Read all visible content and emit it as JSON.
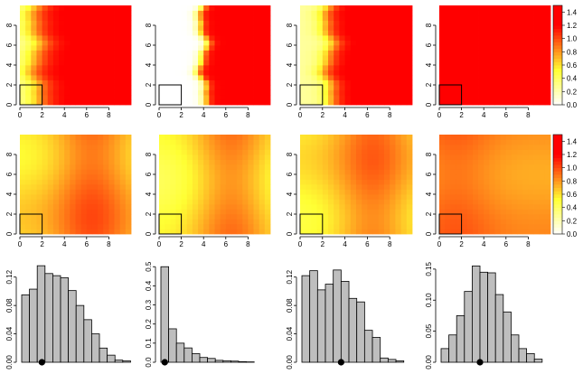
{
  "chart_data": [
    {
      "type": "heatmap",
      "row": 0,
      "col": 0,
      "x_ticks": [
        "0",
        "2",
        "4",
        "6",
        "8"
      ],
      "y_ticks": [
        "0",
        "2",
        "4",
        "6",
        "8"
      ],
      "xlim": [
        0,
        10
      ],
      "ylim": [
        0,
        10
      ],
      "field": {
        "mode": "boundary",
        "boundary_x": 1.4,
        "width": 0.7,
        "low": 0.25,
        "high": 1.22
      },
      "box": {
        "x": [
          0,
          2
        ],
        "y": [
          0,
          2
        ]
      }
    },
    {
      "type": "heatmap",
      "row": 0,
      "col": 1,
      "x_ticks": [
        "0",
        "2",
        "4",
        "6",
        "8"
      ],
      "y_ticks": [
        "0",
        "2",
        "4",
        "6",
        "8"
      ],
      "xlim": [
        0,
        10
      ],
      "ylim": [
        0,
        10
      ],
      "field": {
        "mode": "boundary",
        "boundary_x": 3.9,
        "width": 0.25,
        "low": 0.0,
        "high": 1.2
      },
      "box": {
        "x": [
          0,
          2
        ],
        "y": [
          0,
          2
        ]
      }
    },
    {
      "type": "heatmap",
      "row": 0,
      "col": 2,
      "x_ticks": [
        "0",
        "2",
        "4",
        "6",
        "8"
      ],
      "y_ticks": [
        "0",
        "2",
        "4",
        "6",
        "8"
      ],
      "xlim": [
        0,
        10
      ],
      "ylim": [
        0,
        10
      ],
      "field": {
        "mode": "boundary",
        "boundary_x": 2.5,
        "width": 0.5,
        "low": 0.25,
        "high": 1.22
      },
      "box": {
        "x": [
          0,
          2
        ],
        "y": [
          0,
          2
        ]
      }
    },
    {
      "type": "heatmap",
      "row": 0,
      "col": 3,
      "x_ticks": [
        "0",
        "2",
        "4",
        "6",
        "8"
      ],
      "y_ticks": [
        "0",
        "2",
        "4",
        "6",
        "8"
      ],
      "xlim": [
        0,
        10
      ],
      "ylim": [
        0,
        10
      ],
      "field": {
        "mode": "constant",
        "value": 1.25
      },
      "box": {
        "x": [
          0,
          2
        ],
        "y": [
          0,
          2
        ]
      }
    },
    {
      "type": "heatmap",
      "row": 1,
      "col": 0,
      "x_ticks": [
        "0",
        "2",
        "4",
        "6",
        "8"
      ],
      "y_ticks": [
        "0",
        "2",
        "4",
        "6",
        "8"
      ],
      "xlim": [
        0,
        10
      ],
      "ylim": [
        0,
        10
      ],
      "field": {
        "mode": "smooth",
        "bx": 0.42,
        "ax": 0.5,
        "cx": 6.5,
        "by": 0.5,
        "ay": 0.12,
        "cy": 7.0
      },
      "box": {
        "x": [
          0,
          2
        ],
        "y": [
          0,
          2
        ]
      }
    },
    {
      "type": "heatmap",
      "row": 1,
      "col": 1,
      "x_ticks": [
        "0",
        "2",
        "4",
        "6",
        "8"
      ],
      "y_ticks": [
        "0",
        "2",
        "4",
        "6",
        "8"
      ],
      "xlim": [
        0,
        10
      ],
      "ylim": [
        0,
        10
      ],
      "field": {
        "mode": "smooth",
        "bx": 0.25,
        "ax": 0.55,
        "cx": 6.5,
        "by": 0.5,
        "ay": 0.1,
        "cy": 2.0
      },
      "box": {
        "x": [
          0,
          2
        ],
        "y": [
          0,
          2
        ]
      }
    },
    {
      "type": "heatmap",
      "row": 1,
      "col": 2,
      "x_ticks": [
        "0",
        "2",
        "4",
        "6",
        "8"
      ],
      "y_ticks": [
        "0",
        "2",
        "4",
        "6",
        "8"
      ],
      "xlim": [
        0,
        10
      ],
      "ylim": [
        0,
        10
      ],
      "field": {
        "mode": "smooth",
        "bx": 0.35,
        "ax": 0.5,
        "cx": 6.5,
        "by": 0.5,
        "ay": 0.12,
        "cy": 4.0
      },
      "box": {
        "x": [
          0,
          2
        ],
        "y": [
          0,
          2
        ]
      }
    },
    {
      "type": "heatmap",
      "row": 1,
      "col": 3,
      "x_ticks": [
        "0",
        "2",
        "4",
        "6",
        "8"
      ],
      "y_ticks": [
        "0",
        "2",
        "4",
        "6",
        "8"
      ],
      "xlim": [
        0,
        10
      ],
      "ylim": [
        0,
        10
      ],
      "field": {
        "mode": "smooth",
        "bx": 0.7,
        "ax": 0.2,
        "cx": 1.5,
        "by": 0.5,
        "ay": 0.08,
        "cy": 8.0
      },
      "box": {
        "x": [
          0,
          2
        ],
        "y": [
          0,
          2
        ]
      }
    },
    {
      "type": "bar",
      "row": 2,
      "col": 0,
      "values": [
        0.095,
        0.103,
        0.136,
        0.125,
        0.122,
        0.119,
        0.101,
        0.08,
        0.06,
        0.04,
        0.02,
        0.01,
        0.003,
        0.002
      ],
      "ylim": [
        0,
        0.14
      ],
      "y_ticks": [
        "0.00",
        "0.04",
        "0.08",
        "0.12"
      ],
      "y_tick_values": [
        0,
        0.04,
        0.08,
        0.12
      ],
      "marker_x": 2.1
    },
    {
      "type": "bar",
      "row": 2,
      "col": 1,
      "values": [
        0.5,
        0.175,
        0.1,
        0.075,
        0.045,
        0.025,
        0.02,
        0.01,
        0.008,
        0.006,
        0.003,
        0.002
      ],
      "ylim": [
        0,
        0.52
      ],
      "y_ticks": [
        "0.0",
        "0.1",
        "0.2",
        "0.3",
        "0.4",
        "0.5"
      ],
      "y_tick_values": [
        0,
        0.1,
        0.2,
        0.3,
        0.4,
        0.5
      ],
      "marker_x": 0.0
    },
    {
      "type": "bar",
      "row": 2,
      "col": 2,
      "values": [
        0.122,
        0.129,
        0.102,
        0.11,
        0.13,
        0.114,
        0.09,
        0.085,
        0.045,
        0.035,
        0.006,
        0.004,
        0.002
      ],
      "ylim": [
        0,
        0.14
      ],
      "y_ticks": [
        "0.00",
        "0.04",
        "0.08",
        "0.12"
      ],
      "y_tick_values": [
        0,
        0.04,
        0.08,
        0.12
      ],
      "marker_x": 4.5
    },
    {
      "type": "bar",
      "row": 2,
      "col": 3,
      "values": [
        0.022,
        0.044,
        0.075,
        0.114,
        0.155,
        0.145,
        0.144,
        0.109,
        0.081,
        0.044,
        0.022,
        0.014,
        0.005
      ],
      "ylim": [
        0,
        0.16
      ],
      "y_ticks": [
        "0.00",
        "0.05",
        "0.10",
        "0.15"
      ],
      "y_tick_values": [
        0,
        0.05,
        0.1,
        0.15
      ],
      "marker_x": 4.5
    }
  ],
  "colorbars": [
    {
      "row": 0,
      "labels": [
        "1.4",
        "1.2",
        "1.0",
        "0.8",
        "0.6",
        "0.4",
        "0.2",
        "0.0"
      ],
      "label_values": [
        1.4,
        1.2,
        1.0,
        0.8,
        0.6,
        0.4,
        0.2,
        0.0
      ],
      "range": [
        0,
        1.5
      ]
    },
    {
      "row": 1,
      "labels": [
        "1.4",
        "1.2",
        "1.0",
        "0.8",
        "0.6",
        "0.4",
        "0.2",
        "0.0"
      ],
      "label_values": [
        1.4,
        1.2,
        1.0,
        0.8,
        0.6,
        0.4,
        0.2,
        0.0
      ],
      "range": [
        0,
        1.5
      ]
    }
  ],
  "colors": {
    "low": "#ffffff",
    "mid": "#ffff33",
    "high": "#ff0000",
    "bar_fill": "#bebebe",
    "bar_stroke": "#000000"
  }
}
